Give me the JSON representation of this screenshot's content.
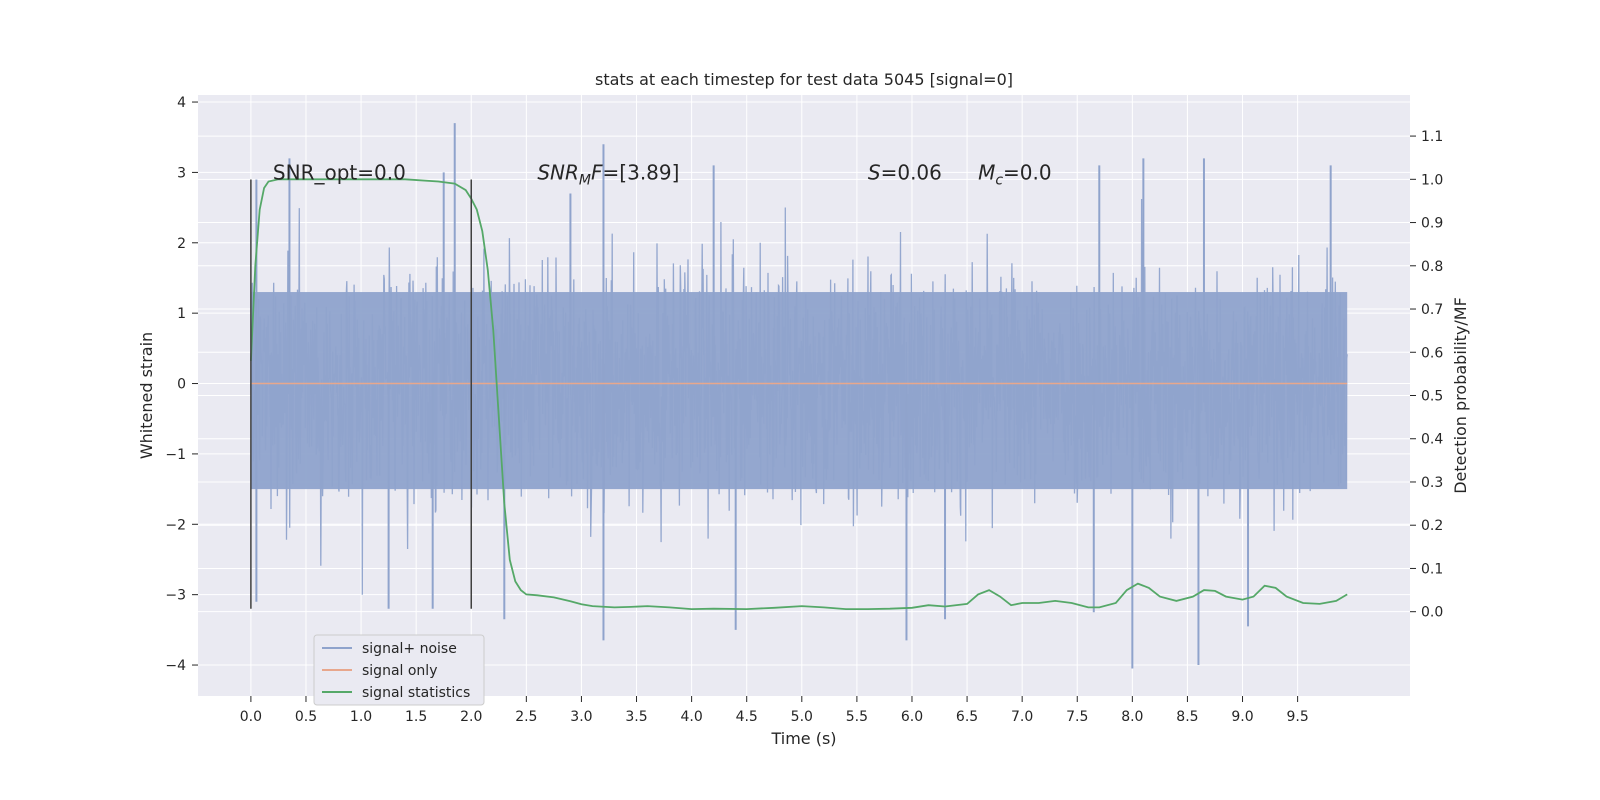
{
  "chart_data": {
    "type": "line",
    "title": "stats at each timestep for test data 5045 [signal=0]",
    "xlabel": "Time (s)",
    "ylabel": "Whitened strain",
    "y2label": "Detection probability/MF",
    "xlim": [
      -0.48,
      10.52
    ],
    "ylim": [
      -4.44,
      4.1
    ],
    "y2lim": [
      -0.195,
      1.195
    ],
    "x_ticks": [
      0.0,
      0.5,
      1.0,
      1.5,
      2.0,
      2.5,
      3.0,
      3.5,
      4.0,
      4.5,
      5.0,
      5.5,
      6.0,
      6.5,
      7.0,
      7.5,
      8.0,
      8.5,
      9.0,
      9.5
    ],
    "x_tick_labels": [
      "0.0",
      "0.5",
      "1.0",
      "1.5",
      "2.0",
      "2.5",
      "3.0",
      "3.5",
      "4.0",
      "4.5",
      "5.0",
      "5.5",
      "6.0",
      "6.5",
      "7.0",
      "7.5",
      "8.0",
      "8.5",
      "9.0",
      "9.5"
    ],
    "y_ticks": [
      4,
      3,
      2,
      1,
      0,
      -1,
      -2,
      -3,
      -4
    ],
    "y_tick_labels": [
      "4",
      "3",
      "2",
      "1",
      "0",
      "−1",
      "−2",
      "−3",
      "−4"
    ],
    "y2_ticks": [
      1.1,
      1.0,
      0.9,
      0.8,
      0.7,
      0.6,
      0.5,
      0.4,
      0.3,
      0.2,
      0.1,
      0.0
    ],
    "y2_tick_labels": [
      "1.1",
      "1.0",
      "0.9",
      "0.8",
      "0.7",
      "0.6",
      "0.5",
      "0.4",
      "0.3",
      "0.2",
      "0.1",
      "0.0"
    ],
    "grid": true,
    "legend_position": "bottom-left",
    "background": "#eaeaf2",
    "vlines": {
      "x": [
        0.0,
        2.0
      ],
      "ymin": -3.2,
      "ymax": 2.9,
      "color": "#404040"
    },
    "annotations": [
      {
        "pre": "SNR_opt=0.0",
        "italic": "",
        "sub": "",
        "post": "",
        "x": 0.2,
        "y": 2.9
      },
      {
        "pre": "",
        "italic": "SNR",
        "sub": "M",
        "post": "F=[3.89]",
        "x": 2.6,
        "y": 2.9
      },
      {
        "pre": "",
        "italic": "S",
        "sub": "",
        "post": "=0.06",
        "x": 5.6,
        "y": 2.9
      },
      {
        "pre": "",
        "italic": "M",
        "sub": "c",
        "post": "=0.0",
        "x": 6.6,
        "y": 2.9
      }
    ],
    "series": [
      {
        "name": "signal+ noise",
        "color": "#8fa3cc",
        "axis": "left",
        "kind": "noise",
        "x_range": [
          0.0,
          9.95
        ],
        "band": [
          -1.5,
          1.3
        ],
        "extreme_spikes": [
          {
            "x": 1.85,
            "y": 3.7
          },
          {
            "x": 3.2,
            "y": 3.4
          },
          {
            "x": 8.0,
            "y": -4.05
          },
          {
            "x": 8.6,
            "y": -4.0
          },
          {
            "x": 3.2,
            "y": -3.65
          },
          {
            "x": 5.95,
            "y": -3.65
          },
          {
            "x": 4.4,
            "y": -3.5
          },
          {
            "x": 9.05,
            "y": -3.45
          },
          {
            "x": 2.3,
            "y": -3.35
          },
          {
            "x": 0.05,
            "y": 2.9
          },
          {
            "x": 0.35,
            "y": 3.2
          },
          {
            "x": 1.75,
            "y": 3.0
          },
          {
            "x": 2.9,
            "y": 2.7
          },
          {
            "x": 4.2,
            "y": 3.1
          },
          {
            "x": 6.3,
            "y": -3.35
          },
          {
            "x": 7.65,
            "y": -3.25
          },
          {
            "x": 8.65,
            "y": 3.2
          },
          {
            "x": 8.1,
            "y": 3.2
          },
          {
            "x": 9.8,
            "y": 3.1
          },
          {
            "x": 1.25,
            "y": -3.2
          },
          {
            "x": 1.65,
            "y": -3.2
          },
          {
            "x": 0.05,
            "y": -3.1
          },
          {
            "x": 7.7,
            "y": 3.1
          }
        ]
      },
      {
        "name": "signal only",
        "color": "#e8a78c",
        "axis": "left",
        "kind": "line",
        "points": [
          [
            0.0,
            0.0
          ],
          [
            9.95,
            0.0
          ]
        ]
      },
      {
        "name": "signal statistics",
        "color": "#55a868",
        "axis": "right",
        "kind": "line",
        "points": [
          [
            0.0,
            0.58
          ],
          [
            0.04,
            0.8
          ],
          [
            0.08,
            0.93
          ],
          [
            0.12,
            0.98
          ],
          [
            0.16,
            0.995
          ],
          [
            0.25,
            1.0
          ],
          [
            0.6,
            1.0
          ],
          [
            1.0,
            1.0
          ],
          [
            1.4,
            1.0
          ],
          [
            1.7,
            0.995
          ],
          [
            1.85,
            0.99
          ],
          [
            1.95,
            0.975
          ],
          [
            2.0,
            0.955
          ],
          [
            2.05,
            0.93
          ],
          [
            2.1,
            0.88
          ],
          [
            2.15,
            0.79
          ],
          [
            2.2,
            0.65
          ],
          [
            2.25,
            0.45
          ],
          [
            2.3,
            0.25
          ],
          [
            2.35,
            0.12
          ],
          [
            2.4,
            0.07
          ],
          [
            2.45,
            0.05
          ],
          [
            2.5,
            0.04
          ],
          [
            2.6,
            0.038
          ],
          [
            2.75,
            0.033
          ],
          [
            2.9,
            0.024
          ],
          [
            3.0,
            0.017
          ],
          [
            3.1,
            0.013
          ],
          [
            3.3,
            0.01
          ],
          [
            3.45,
            0.011
          ],
          [
            3.6,
            0.013
          ],
          [
            3.8,
            0.01
          ],
          [
            4.0,
            0.006
          ],
          [
            4.2,
            0.007
          ],
          [
            4.5,
            0.006
          ],
          [
            4.75,
            0.009
          ],
          [
            5.0,
            0.013
          ],
          [
            5.2,
            0.01
          ],
          [
            5.4,
            0.006
          ],
          [
            5.6,
            0.006
          ],
          [
            5.8,
            0.007
          ],
          [
            6.0,
            0.009
          ],
          [
            6.15,
            0.015
          ],
          [
            6.3,
            0.012
          ],
          [
            6.5,
            0.018
          ],
          [
            6.6,
            0.04
          ],
          [
            6.7,
            0.05
          ],
          [
            6.8,
            0.035
          ],
          [
            6.9,
            0.015
          ],
          [
            7.0,
            0.02
          ],
          [
            7.15,
            0.02
          ],
          [
            7.3,
            0.025
          ],
          [
            7.45,
            0.02
          ],
          [
            7.6,
            0.01
          ],
          [
            7.7,
            0.01
          ],
          [
            7.85,
            0.02
          ],
          [
            7.95,
            0.05
          ],
          [
            8.05,
            0.065
          ],
          [
            8.15,
            0.055
          ],
          [
            8.25,
            0.035
          ],
          [
            8.4,
            0.025
          ],
          [
            8.55,
            0.035
          ],
          [
            8.65,
            0.05
          ],
          [
            8.75,
            0.048
          ],
          [
            8.85,
            0.035
          ],
          [
            9.0,
            0.028
          ],
          [
            9.1,
            0.035
          ],
          [
            9.2,
            0.06
          ],
          [
            9.3,
            0.055
          ],
          [
            9.4,
            0.035
          ],
          [
            9.55,
            0.02
          ],
          [
            9.7,
            0.018
          ],
          [
            9.85,
            0.025
          ],
          [
            9.95,
            0.04
          ]
        ]
      }
    ]
  }
}
